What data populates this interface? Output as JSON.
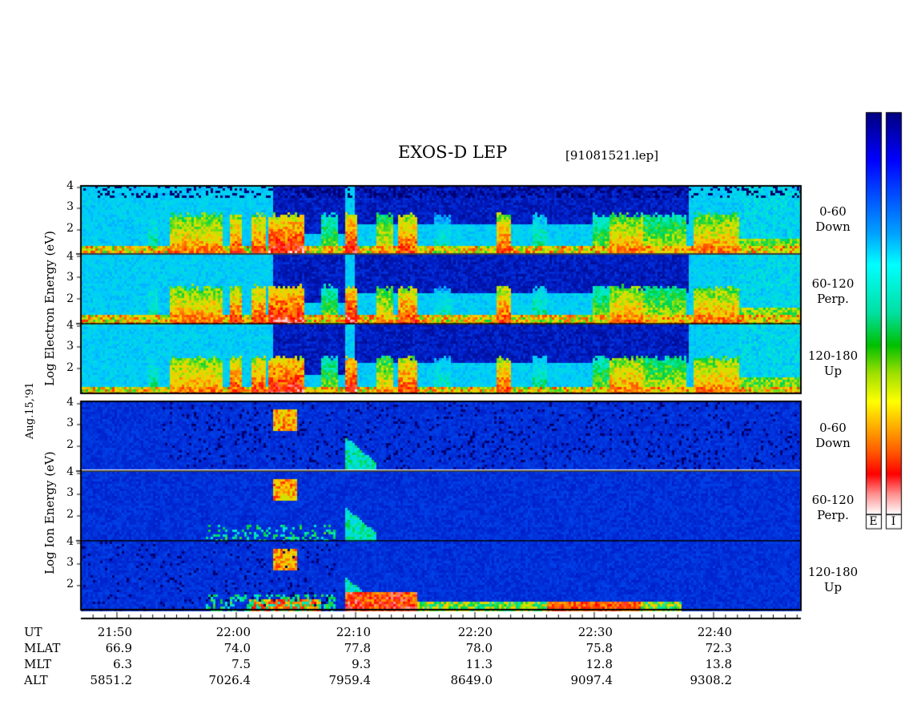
{
  "header": {
    "title": "EXOS-D LEP",
    "filename": "[91081521.lep]"
  },
  "date_label": "Aug.15,'91",
  "colorbar": {
    "labels": [
      "E",
      "I"
    ]
  },
  "electron": {
    "ylabel": "Log Electron Energy (eV)",
    "panels": [
      {
        "line1": "0-60",
        "line2": "Down"
      },
      {
        "line1": "60-120",
        "line2": "Perp."
      },
      {
        "line1": "120-180",
        "line2": "Up"
      }
    ]
  },
  "ion": {
    "ylabel": "Log Ion Energy (eV)",
    "panels": [
      {
        "line1": "0-60",
        "line2": "Down"
      },
      {
        "line1": "60-120",
        "line2": "Perp."
      },
      {
        "line1": "120-180",
        "line2": "Up"
      }
    ]
  },
  "ephemeris": {
    "row_names": [
      "UT",
      "MLAT",
      "MLT",
      "ALT"
    ],
    "columns": [
      {
        "UT": "21:50",
        "MLAT": "66.9",
        "MLT": "6.3",
        "ALT": "5851.2"
      },
      {
        "UT": "22:00",
        "MLAT": "74.0",
        "MLT": "7.5",
        "ALT": "7026.4"
      },
      {
        "UT": "22:10",
        "MLAT": "77.8",
        "MLT": "9.3",
        "ALT": "7959.4"
      },
      {
        "UT": "22:20",
        "MLAT": "78.0",
        "MLT": "11.3",
        "ALT": "8649.0"
      },
      {
        "UT": "22:30",
        "MLAT": "75.8",
        "MLT": "12.8",
        "ALT": "9097.4"
      },
      {
        "UT": "22:40",
        "MLAT": "72.3",
        "MLT": "13.8",
        "ALT": "9308.2"
      }
    ]
  },
  "chart_data": {
    "type": "heatmap",
    "title": "EXOS-D LEP",
    "x": {
      "label": "UT",
      "ticks": [
        "21:50",
        "22:00",
        "22:10",
        "22:20",
        "22:30",
        "22:40"
      ]
    },
    "y": {
      "ticks": [
        2,
        3,
        4
      ]
    },
    "panels": [
      {
        "species": "Electron",
        "pitch_angle": "0-60",
        "direction": "Down"
      },
      {
        "species": "Electron",
        "pitch_angle": "60-120",
        "direction": "Perp."
      },
      {
        "species": "Electron",
        "pitch_angle": "120-180",
        "direction": "Up"
      },
      {
        "species": "Ion",
        "pitch_angle": "0-60",
        "direction": "Down"
      },
      {
        "species": "Ion",
        "pitch_angle": "60-120",
        "direction": "Perp."
      },
      {
        "species": "Ion",
        "pitch_angle": "120-180",
        "direction": "Up"
      }
    ],
    "colorscale": [
      "#ffffff",
      "#ff0000",
      "#ff8000",
      "#ffff00",
      "#00d000",
      "#00ffff",
      "#0040ff",
      "#000080"
    ]
  }
}
